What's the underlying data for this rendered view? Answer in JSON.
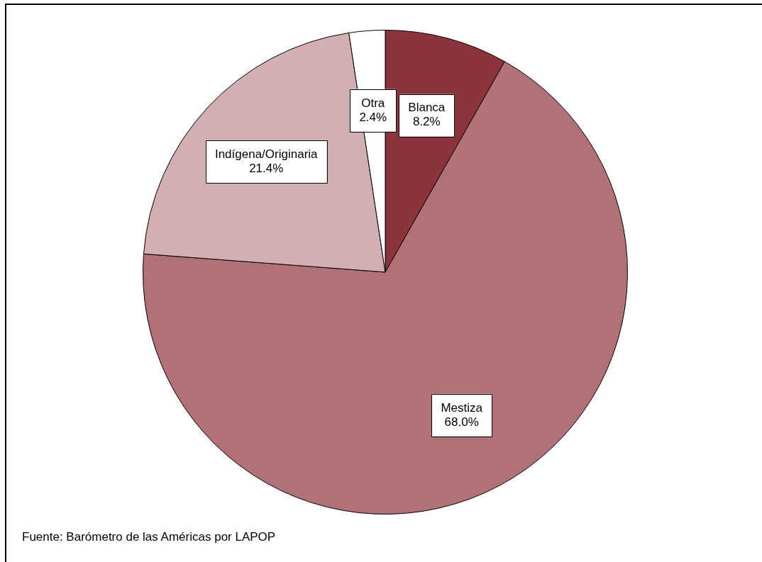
{
  "chart_data": {
    "type": "pie",
    "categories": [
      "Blanca",
      "Mestiza",
      "Indígena/Originaria",
      "Otra"
    ],
    "values": [
      8.2,
      68.0,
      21.4,
      2.4
    ],
    "colors": [
      "#8c343c",
      "#b07277",
      "#d3afb1",
      "#ffffff"
    ],
    "value_labels": [
      "8.2%",
      "68.0%",
      "21.4%",
      "2.4%"
    ],
    "annotations": [
      "Fuente: Barómetro de las Américas por LAPOP"
    ],
    "legend": false
  }
}
